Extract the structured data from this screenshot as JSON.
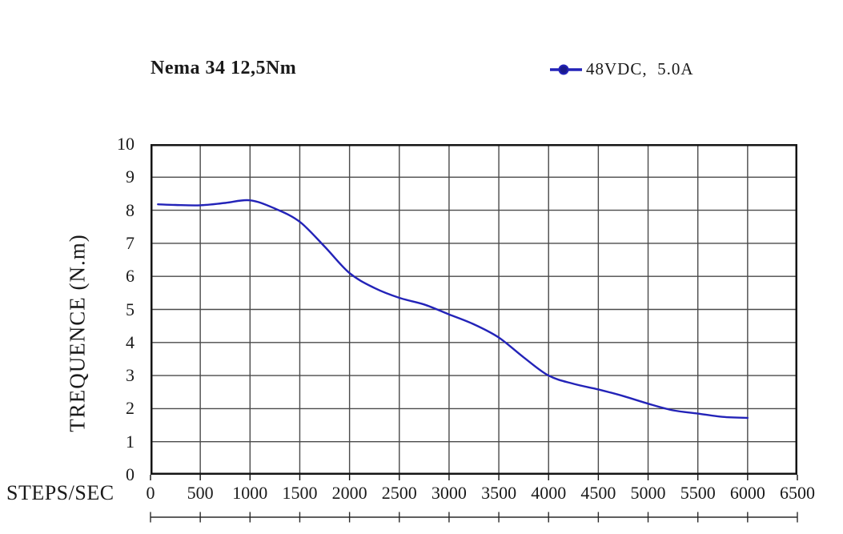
{
  "page": {
    "background": "#ffffff"
  },
  "chart": {
    "title": "Nema 34 12,5Nm",
    "legend": {
      "label": "48VDC,  5.0A",
      "line_color": "#2323b8",
      "marker_color": "#1a1a8c"
    },
    "x_axis": {
      "label": "STEPS/SEC"
    },
    "y_axis": {
      "label": "TREQUENCE (N.m)"
    }
  },
  "chart_data": {
    "type": "line",
    "title": "Nema 34 12,5Nm",
    "xlabel": "STEPS/SEC",
    "ylabel": "TREQUENCE (N.m)",
    "xlim": [
      0,
      6500
    ],
    "ylim": [
      0,
      10
    ],
    "x_ticks": [
      0,
      500,
      1000,
      1500,
      2000,
      2500,
      3000,
      3500,
      4000,
      4500,
      5000,
      5500,
      6000,
      6500
    ],
    "y_ticks": [
      10,
      9,
      8,
      7,
      6,
      5,
      4,
      3,
      2,
      1,
      0
    ],
    "grid": true,
    "legend_position": "top-right",
    "colors": {
      "grid": "#4a4a4a",
      "frame": "#141414",
      "curve": "#2323b8"
    },
    "series": [
      {
        "name": "48VDC, 5.0A",
        "color": "#2323b8",
        "points": [
          [
            75,
            8.18
          ],
          [
            250,
            8.16
          ],
          [
            500,
            8.15
          ],
          [
            750,
            8.22
          ],
          [
            1000,
            8.3
          ],
          [
            1250,
            8.05
          ],
          [
            1500,
            7.65
          ],
          [
            1750,
            6.9
          ],
          [
            2000,
            6.1
          ],
          [
            2250,
            5.65
          ],
          [
            2500,
            5.35
          ],
          [
            2750,
            5.15
          ],
          [
            3000,
            4.85
          ],
          [
            3250,
            4.55
          ],
          [
            3500,
            4.15
          ],
          [
            3750,
            3.55
          ],
          [
            4000,
            3.0
          ],
          [
            4250,
            2.75
          ],
          [
            4500,
            2.58
          ],
          [
            4750,
            2.38
          ],
          [
            5000,
            2.15
          ],
          [
            5250,
            1.95
          ],
          [
            5500,
            1.85
          ],
          [
            5750,
            1.75
          ],
          [
            6000,
            1.72
          ]
        ]
      }
    ]
  }
}
